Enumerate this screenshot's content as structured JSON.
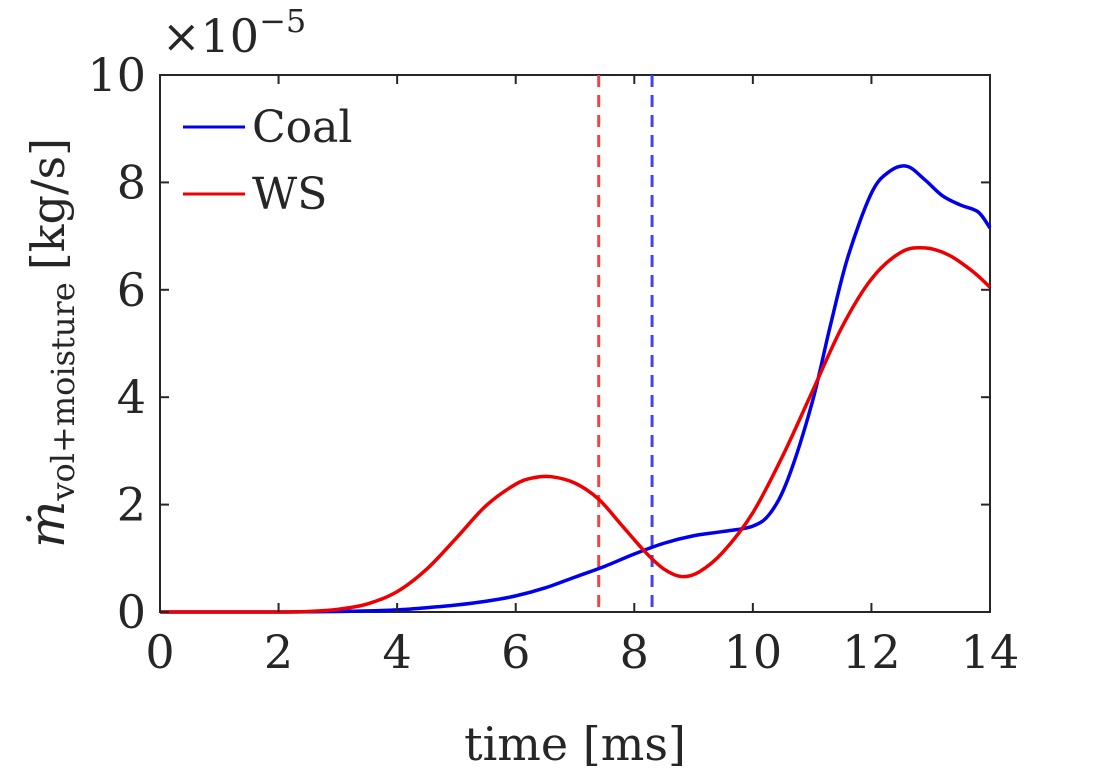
{
  "chart_data": {
    "type": "line",
    "xlabel": "time [ms]",
    "ylabel": {
      "main": "ṁ",
      "subscript": "vol+moisture",
      "unit": "[kg/s]"
    },
    "y_multiplier": {
      "prefix": "×10",
      "exponent": "−5"
    },
    "xlim": [
      0,
      14
    ],
    "ylim": [
      0,
      10
    ],
    "xticks": [
      "0",
      "2",
      "4",
      "6",
      "8",
      "10",
      "12",
      "14"
    ],
    "yticks": [
      "0",
      "2",
      "4",
      "6",
      "8",
      "10"
    ],
    "grid": false,
    "legend_position": "top-left",
    "series": [
      {
        "name": "Coal",
        "color": "#0000ee",
        "x": [
          0,
          1,
          2,
          3,
          3.5,
          4,
          4.5,
          5,
          5.5,
          6,
          6.5,
          7,
          7.5,
          8,
          8.5,
          9,
          9.5,
          10,
          10.3,
          10.6,
          11,
          11.3,
          11.6,
          12,
          12.3,
          12.6,
          12.9,
          13.2,
          13.5,
          13.8,
          14
        ],
        "y": [
          0,
          0,
          0,
          0.01,
          0.02,
          0.04,
          0.08,
          0.13,
          0.2,
          0.3,
          0.45,
          0.65,
          0.85,
          1.08,
          1.28,
          1.42,
          1.5,
          1.6,
          1.85,
          2.5,
          3.9,
          5.3,
          6.6,
          7.8,
          8.2,
          8.3,
          8.05,
          7.75,
          7.58,
          7.45,
          7.15
        ]
      },
      {
        "name": "WS",
        "color": "#ee0000",
        "x": [
          0,
          1,
          2,
          2.5,
          3,
          3.5,
          4,
          4.5,
          5,
          5.5,
          6,
          6.3,
          6.6,
          7,
          7.4,
          7.8,
          8.2,
          8.5,
          8.8,
          9.1,
          9.5,
          10,
          10.5,
          11,
          11.5,
          12,
          12.5,
          12.9,
          13.3,
          13.7,
          14
        ],
        "y": [
          0,
          0,
          0,
          0.01,
          0.05,
          0.15,
          0.38,
          0.8,
          1.38,
          1.98,
          2.38,
          2.5,
          2.52,
          2.4,
          2.1,
          1.6,
          1.1,
          0.8,
          0.66,
          0.75,
          1.12,
          1.85,
          2.9,
          4.1,
          5.3,
          6.2,
          6.7,
          6.78,
          6.65,
          6.35,
          6.05
        ]
      }
    ],
    "vertical_lines": [
      {
        "series": "WS",
        "x": 7.4,
        "color": "#ee4444",
        "style": "dashed"
      },
      {
        "series": "Coal",
        "x": 8.3,
        "color": "#4444ee",
        "style": "dashed"
      }
    ]
  }
}
